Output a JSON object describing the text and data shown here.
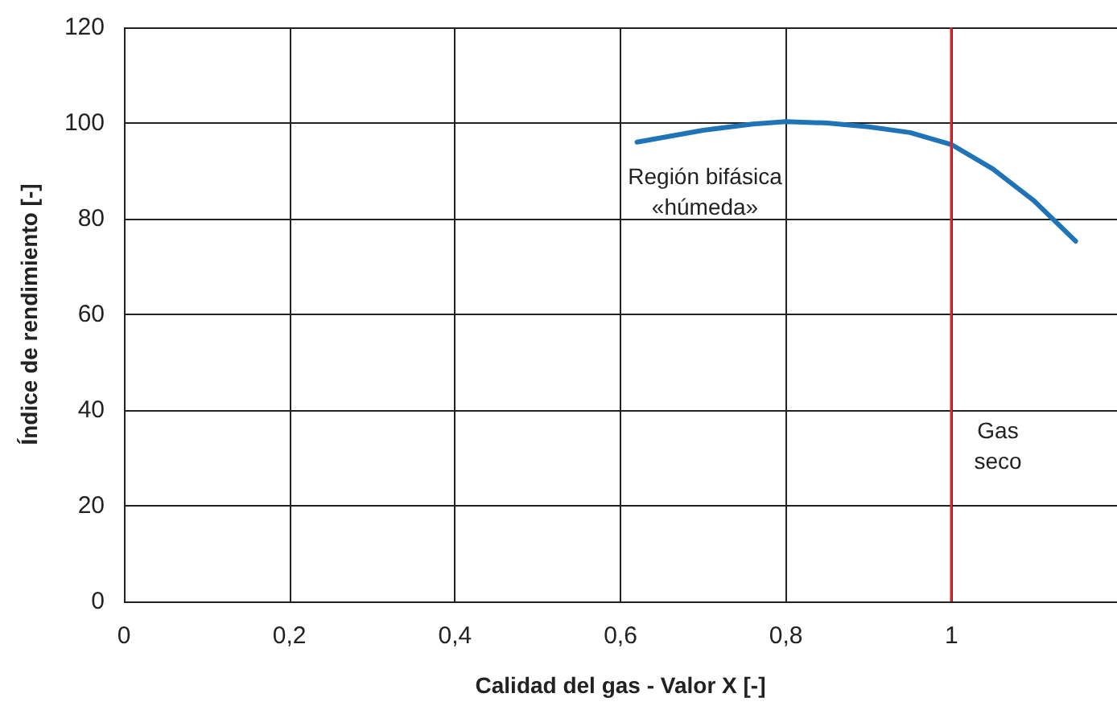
{
  "chart_data": {
    "type": "line",
    "xlabel": "Calidad del gas - Valor X [-]",
    "ylabel": "Índice de rendimiento [-]",
    "xlim": [
      0,
      1.2
    ],
    "xticks": [
      0,
      {
        "value": 0.2,
        "label": "0,2"
      },
      {
        "value": 0.4,
        "label": "0,4"
      },
      {
        "value": 0.6,
        "label": "0,6"
      },
      {
        "value": 0.8,
        "label": "0,8"
      },
      1
    ],
    "ylim": [
      0,
      120
    ],
    "yticks": [
      0,
      20,
      40,
      60,
      80,
      100,
      120
    ],
    "grid": true,
    "marker": "none",
    "series": [
      {
        "color": "#1f73b7",
        "x": [
          0.62,
          0.7,
          0.76,
          0.8,
          0.85,
          0.9,
          0.95,
          1.0,
          1.05,
          1.1,
          1.15
        ],
        "values": [
          96,
          98.5,
          99.8,
          100.3,
          100,
          99.2,
          98,
          95.5,
          90.4,
          83.7,
          75.3
        ]
      }
    ],
    "ref_lines": [
      {
        "axis": "x",
        "value": 1,
        "color": "#d9262e"
      }
    ],
    "annotations": [
      "Región bifásica\n«húmeda»",
      "Gas\nseco"
    ]
  }
}
